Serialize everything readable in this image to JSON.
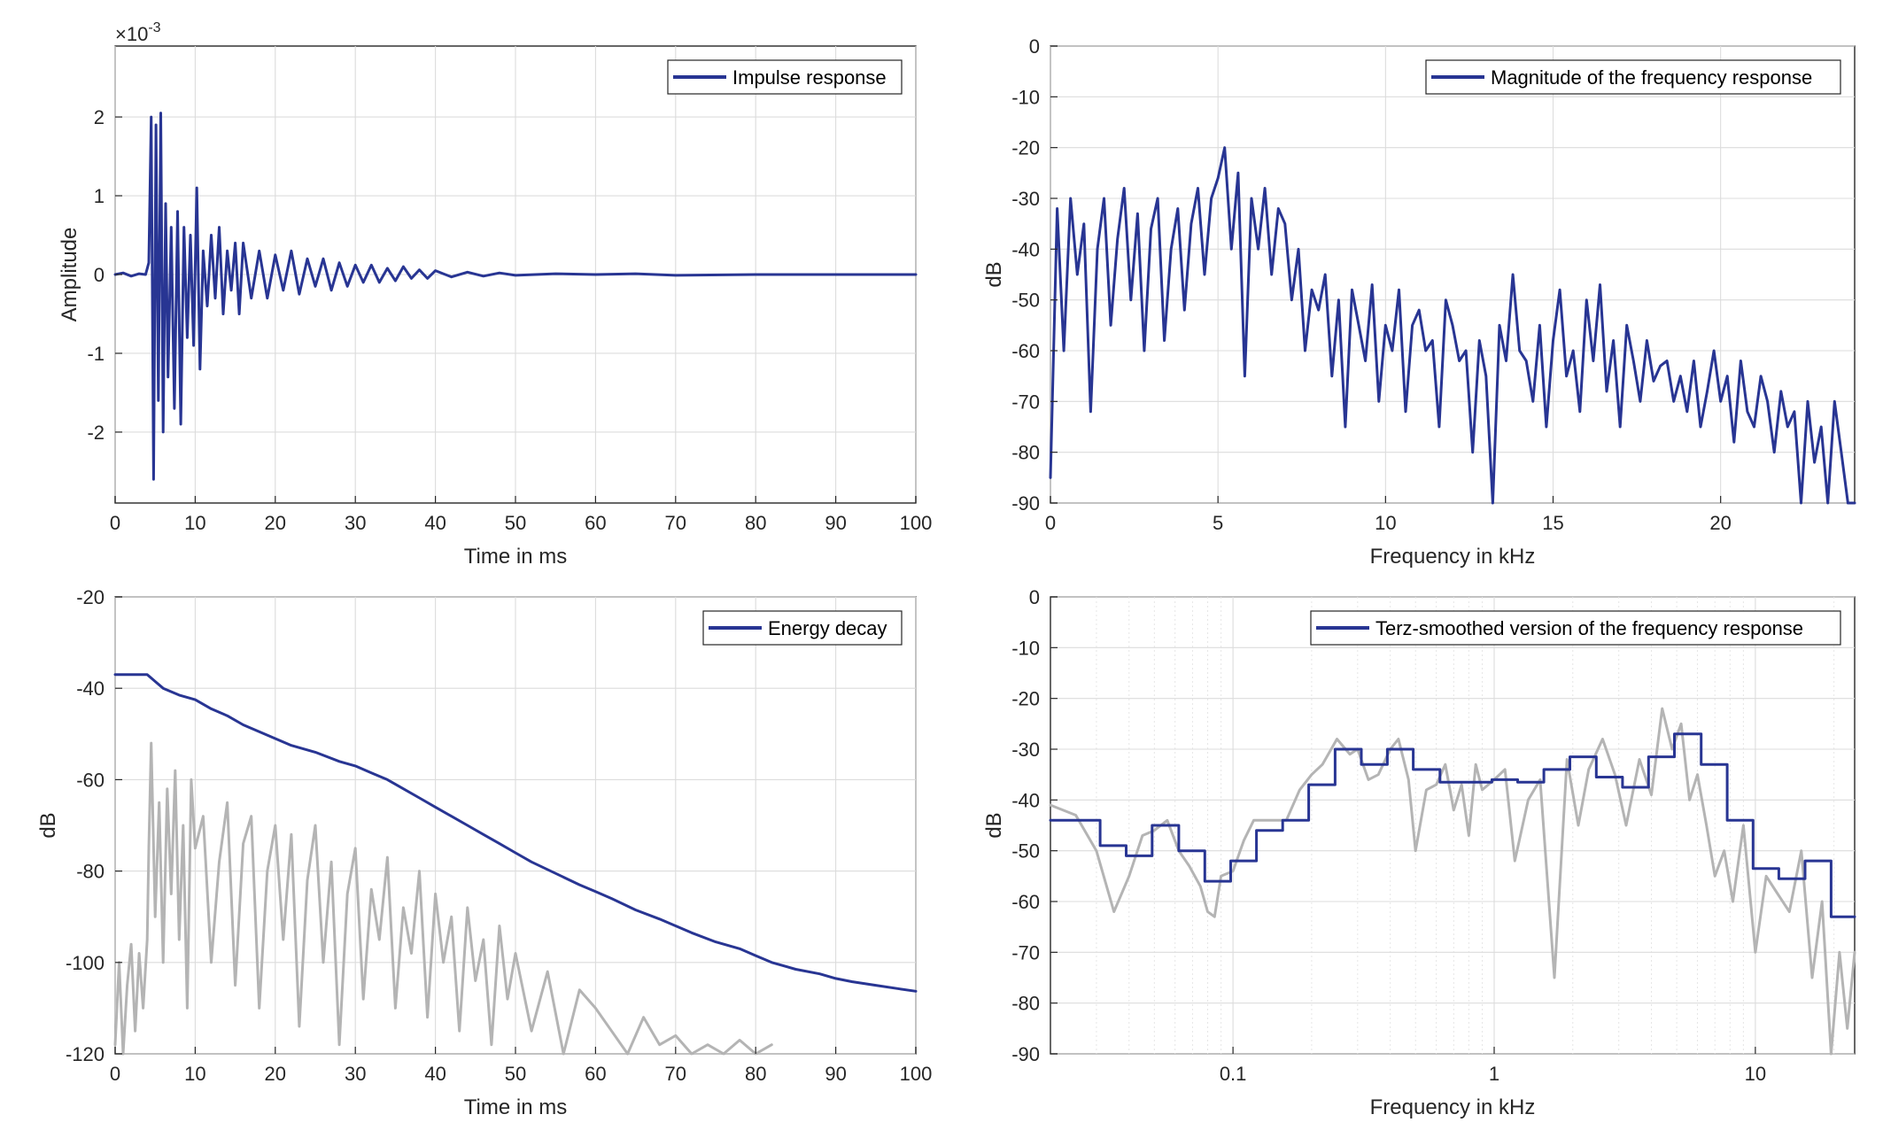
{
  "colors": {
    "primary": "#283593",
    "secondary": "#b4b4b4",
    "frame": "#262626",
    "grid": "#dcdcdc"
  },
  "chart_data": [
    {
      "id": "impulse",
      "type": "line",
      "xlabel": "Time in ms",
      "ylabel": "Amplitude",
      "exponent_label": "×10",
      "exponent_power": "-3",
      "xlim": [
        0,
        100
      ],
      "ylim": [
        -2.9,
        2.9
      ],
      "x_ticks": [
        0,
        10,
        20,
        30,
        40,
        50,
        60,
        70,
        80,
        90,
        100
      ],
      "y_ticks": [
        -2,
        -1,
        0,
        1,
        2
      ],
      "legend": {
        "position": "top-right",
        "entries": [
          "Impulse response"
        ]
      },
      "grid": true,
      "series": [
        {
          "name": "Impulse response",
          "color": "#283593",
          "x": [
            0,
            1,
            2,
            3,
            3.8,
            4.2,
            4.5,
            4.8,
            5.1,
            5.4,
            5.7,
            6,
            6.3,
            6.6,
            7,
            7.4,
            7.8,
            8.2,
            8.6,
            9,
            9.4,
            9.8,
            10.2,
            10.6,
            11,
            11.5,
            12,
            12.5,
            13,
            13.5,
            14,
            14.5,
            15,
            15.5,
            16,
            17,
            18,
            19,
            20,
            21,
            22,
            23,
            24,
            25,
            26,
            27,
            28,
            29,
            30,
            31,
            32,
            33,
            34,
            35,
            36,
            37,
            38,
            39,
            40,
            42,
            44,
            46,
            48,
            50,
            55,
            60,
            65,
            70,
            80,
            90,
            100
          ],
          "y": [
            0,
            0.02,
            -0.02,
            0.01,
            0,
            0.15,
            2,
            -2.6,
            1.9,
            -1.6,
            2.05,
            -2,
            0.9,
            -1.3,
            0.6,
            -1.7,
            0.8,
            -1.9,
            0.6,
            -0.8,
            0.5,
            -0.9,
            1.1,
            -1.2,
            0.3,
            -0.4,
            0.5,
            -0.3,
            0.6,
            -0.5,
            0.3,
            -0.2,
            0.4,
            -0.5,
            0.4,
            -0.3,
            0.3,
            -0.3,
            0.25,
            -0.2,
            0.3,
            -0.25,
            0.2,
            -0.15,
            0.2,
            -0.2,
            0.15,
            -0.15,
            0.12,
            -0.1,
            0.12,
            -0.1,
            0.08,
            -0.08,
            0.1,
            -0.05,
            0.06,
            -0.05,
            0.05,
            -0.03,
            0.03,
            -0.02,
            0.02,
            -0.01,
            0.01,
            0,
            0.01,
            -0.01,
            0,
            0,
            0
          ]
        }
      ]
    },
    {
      "id": "magnitude",
      "type": "line",
      "xlabel": "Frequency in kHz",
      "ylabel": "dB",
      "xlim": [
        0,
        24
      ],
      "ylim": [
        -90,
        0
      ],
      "x_ticks": [
        0,
        5,
        10,
        15,
        20
      ],
      "y_ticks": [
        0,
        -10,
        -20,
        -30,
        -40,
        -50,
        -60,
        -70,
        -80,
        -90
      ],
      "legend": {
        "position": "top-right",
        "entries": [
          "Magnitude of the frequency response"
        ]
      },
      "grid": true,
      "series": [
        {
          "name": "Magnitude of the frequency response",
          "color": "#283593",
          "x": [
            0,
            0.2,
            0.4,
            0.6,
            0.8,
            1.0,
            1.2,
            1.4,
            1.6,
            1.8,
            2.0,
            2.2,
            2.4,
            2.6,
            2.8,
            3.0,
            3.2,
            3.4,
            3.6,
            3.8,
            4.0,
            4.2,
            4.4,
            4.6,
            4.8,
            5.0,
            5.2,
            5.4,
            5.6,
            5.8,
            6.0,
            6.2,
            6.4,
            6.6,
            6.8,
            7.0,
            7.2,
            7.4,
            7.6,
            7.8,
            8.0,
            8.2,
            8.4,
            8.6,
            8.8,
            9.0,
            9.2,
            9.4,
            9.6,
            9.8,
            10.0,
            10.2,
            10.4,
            10.6,
            10.8,
            11.0,
            11.2,
            11.4,
            11.6,
            11.8,
            12.0,
            12.2,
            12.4,
            12.6,
            12.8,
            13.0,
            13.2,
            13.4,
            13.6,
            13.8,
            14.0,
            14.2,
            14.4,
            14.6,
            14.8,
            15.0,
            15.2,
            15.4,
            15.6,
            15.8,
            16.0,
            16.2,
            16.4,
            16.6,
            16.8,
            17.0,
            17.2,
            17.4,
            17.6,
            17.8,
            18.0,
            18.2,
            18.4,
            18.6,
            18.8,
            19.0,
            19.2,
            19.4,
            19.6,
            19.8,
            20.0,
            20.2,
            20.4,
            20.6,
            20.8,
            21.0,
            21.2,
            21.4,
            21.6,
            21.8,
            22.0,
            22.2,
            22.4,
            22.6,
            22.8,
            23.0,
            23.2,
            23.4,
            23.6,
            23.8,
            24.0
          ],
          "y": [
            -85,
            -32,
            -60,
            -30,
            -45,
            -35,
            -72,
            -40,
            -30,
            -55,
            -38,
            -28,
            -50,
            -33,
            -60,
            -36,
            -30,
            -58,
            -40,
            -32,
            -52,
            -35,
            -28,
            -45,
            -30,
            -26,
            -20,
            -40,
            -25,
            -65,
            -30,
            -40,
            -28,
            -45,
            -32,
            -35,
            -50,
            -40,
            -60,
            -48,
            -52,
            -45,
            -65,
            -50,
            -75,
            -48,
            -55,
            -62,
            -47,
            -70,
            -55,
            -60,
            -48,
            -72,
            -55,
            -52,
            -60,
            -58,
            -75,
            -50,
            -55,
            -62,
            -60,
            -80,
            -58,
            -65,
            -90,
            -55,
            -62,
            -45,
            -60,
            -62,
            -70,
            -55,
            -75,
            -58,
            -48,
            -65,
            -60,
            -72,
            -50,
            -62,
            -47,
            -68,
            -58,
            -75,
            -55,
            -62,
            -70,
            -58,
            -66,
            -63,
            -62,
            -70,
            -65,
            -72,
            -62,
            -75,
            -68,
            -60,
            -70,
            -65,
            -78,
            -62,
            -72,
            -75,
            -65,
            -70,
            -80,
            -68,
            -75,
            -72,
            -90,
            -70,
            -82,
            -75,
            -90,
            -70,
            -80,
            -90,
            -90
          ]
        }
      ]
    },
    {
      "id": "decay",
      "type": "line",
      "xlabel": "Time in ms",
      "ylabel": "dB",
      "xlim": [
        0,
        100
      ],
      "ylim": [
        -120,
        -20
      ],
      "x_ticks": [
        0,
        10,
        20,
        30,
        40,
        50,
        60,
        70,
        80,
        90,
        100
      ],
      "y_ticks": [
        -20,
        -40,
        -60,
        -80,
        -100,
        -120
      ],
      "legend": {
        "position": "top-right",
        "entries": [
          "Energy decay"
        ]
      },
      "grid": true,
      "series": [
        {
          "name": "Energy decay",
          "color": "#283593",
          "x": [
            0,
            4,
            5,
            6,
            8,
            10,
            12,
            14,
            16,
            18,
            20,
            22,
            25,
            28,
            30,
            32,
            34,
            36,
            38,
            40,
            42,
            44,
            46,
            48,
            50,
            52,
            55,
            58,
            60,
            62,
            65,
            68,
            70,
            72,
            75,
            78,
            80,
            82,
            85,
            88,
            90,
            92,
            95,
            98,
            100
          ],
          "y": [
            -37,
            -37,
            -38.5,
            -40,
            -41.5,
            -42.5,
            -44.5,
            -46,
            -48,
            -49.5,
            -51,
            -52.5,
            -54,
            -56,
            -57,
            -58.5,
            -60,
            -62,
            -64,
            -66,
            -68,
            -70,
            -72,
            -74,
            -76,
            -78,
            -80.5,
            -83,
            -84.5,
            -86,
            -88.5,
            -90.5,
            -92,
            -93.5,
            -95.5,
            -97,
            -98.5,
            -100,
            -101.5,
            -102.5,
            -103.5,
            -104.2,
            -105,
            -105.8,
            -106.3
          ]
        },
        {
          "color": "#b4b4b4",
          "x": [
            0,
            0.5,
            1,
            1.5,
            2,
            2.5,
            3,
            3.5,
            4,
            4.2,
            4.5,
            5,
            5.5,
            6,
            6.5,
            7,
            7.5,
            8,
            8.5,
            9,
            9.5,
            10,
            11,
            12,
            13,
            14,
            15,
            16,
            17,
            18,
            19,
            20,
            21,
            22,
            23,
            24,
            25,
            26,
            27,
            28,
            29,
            30,
            31,
            32,
            33,
            34,
            35,
            36,
            37,
            38,
            39,
            40,
            41,
            42,
            43,
            44,
            45,
            46,
            47,
            48,
            49,
            50,
            52,
            54,
            56,
            58,
            60,
            62,
            64,
            66,
            68,
            70,
            72,
            74,
            76,
            78,
            80,
            82
          ],
          "y": [
            -118,
            -100,
            -120,
            -105,
            -96,
            -115,
            -98,
            -110,
            -95,
            -75,
            -52,
            -90,
            -65,
            -100,
            -62,
            -85,
            -58,
            -95,
            -70,
            -110,
            -60,
            -75,
            -68,
            -100,
            -78,
            -65,
            -105,
            -74,
            -68,
            -110,
            -80,
            -70,
            -95,
            -72,
            -114,
            -82,
            -70,
            -100,
            -78,
            -118,
            -85,
            -75,
            -108,
            -84,
            -95,
            -77,
            -110,
            -88,
            -98,
            -80,
            -112,
            -85,
            -100,
            -90,
            -115,
            -88,
            -104,
            -95,
            -118,
            -92,
            -108,
            -98,
            -115,
            -102,
            -120,
            -106,
            -110,
            -115,
            -120,
            -112,
            -118,
            -116,
            -120,
            -118,
            -120,
            -117,
            -120,
            -118
          ]
        }
      ]
    },
    {
      "id": "terz",
      "type": "line",
      "xlabel": "Frequency in kHz",
      "ylabel": "dB",
      "xscale": "log",
      "xlim": [
        0.02,
        24
      ],
      "ylim": [
        -90,
        0
      ],
      "x_ticks": [
        0.1,
        1,
        10
      ],
      "x_tick_labels": [
        "0.1",
        "1",
        "10"
      ],
      "y_ticks": [
        0,
        -10,
        -20,
        -30,
        -40,
        -50,
        -60,
        -70,
        -80,
        -90
      ],
      "legend": {
        "position": "top-right",
        "entries": [
          "Terz-smoothed version of the frequency response"
        ]
      },
      "grid": true,
      "series": [
        {
          "name": "Terz-smoothed version of the frequency response",
          "color": "#283593",
          "step": true,
          "x": [
            0.02,
            0.031,
            0.039,
            0.049,
            0.062,
            0.078,
            0.098,
            0.123,
            0.155,
            0.195,
            0.246,
            0.31,
            0.39,
            0.49,
            0.62,
            0.78,
            0.98,
            1.23,
            1.55,
            1.95,
            2.46,
            3.1,
            3.9,
            4.9,
            6.2,
            7.8,
            9.8,
            12.3,
            15.5,
            19.5,
            24
          ],
          "y": [
            -44,
            -49,
            -51,
            -45,
            -50,
            -56,
            -52,
            -46,
            -44,
            -37,
            -30,
            -33,
            -30,
            -34,
            -36.5,
            -36.5,
            -36,
            -36.5,
            -34,
            -31.5,
            -35.5,
            -37.5,
            -31.5,
            -27,
            -33,
            -44,
            -53.5,
            -55.5,
            -52,
            -63,
            -63
          ]
        },
        {
          "color": "#b4b4b4",
          "x": [
            0.02,
            0.025,
            0.03,
            0.035,
            0.04,
            0.045,
            0.05,
            0.056,
            0.062,
            0.068,
            0.075,
            0.08,
            0.085,
            0.09,
            0.1,
            0.11,
            0.12,
            0.14,
            0.16,
            0.18,
            0.2,
            0.22,
            0.25,
            0.28,
            0.3,
            0.33,
            0.36,
            0.4,
            0.43,
            0.47,
            0.5,
            0.55,
            0.6,
            0.65,
            0.7,
            0.75,
            0.8,
            0.85,
            0.9,
            1.0,
            1.1,
            1.2,
            1.35,
            1.5,
            1.7,
            1.9,
            2.1,
            2.3,
            2.6,
            2.9,
            3.2,
            3.6,
            4.0,
            4.4,
            4.8,
            5.2,
            5.6,
            6.0,
            6.5,
            7.0,
            7.6,
            8.2,
            9.0,
            10,
            11,
            12,
            13.5,
            15,
            16.5,
            18,
            19.5,
            21,
            22.5,
            24
          ],
          "y": [
            -41,
            -43,
            -50,
            -62,
            -55,
            -47,
            -46,
            -44,
            -50,
            -53,
            -57,
            -62,
            -63,
            -55,
            -54,
            -48,
            -44,
            -44,
            -44,
            -38,
            -35,
            -33,
            -28,
            -31,
            -30,
            -36,
            -35,
            -30,
            -28,
            -36,
            -50,
            -38,
            -37,
            -33,
            -42,
            -37,
            -47,
            -33,
            -38,
            -36,
            -34,
            -52,
            -40,
            -36,
            -75,
            -32,
            -45,
            -34,
            -28,
            -35,
            -45,
            -32,
            -39,
            -22,
            -30,
            -25,
            -40,
            -35,
            -45,
            -55,
            -50,
            -60,
            -45,
            -70,
            -55,
            -58,
            -62,
            -50,
            -75,
            -60,
            -90,
            -70,
            -85,
            -70
          ]
        }
      ]
    }
  ]
}
